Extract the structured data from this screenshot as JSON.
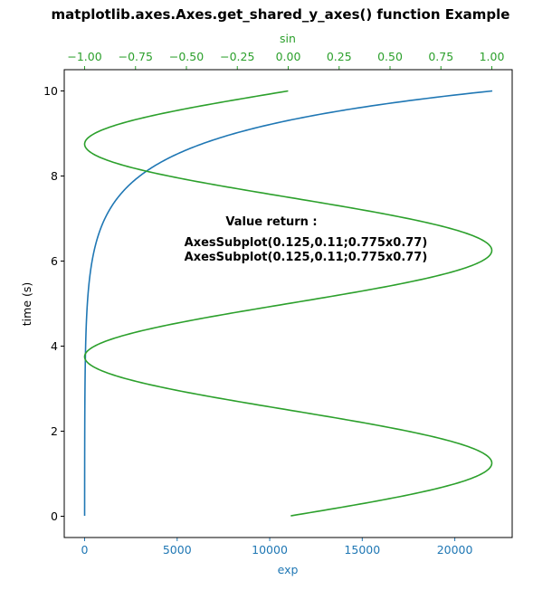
{
  "chart_data": {
    "type": "line",
    "title": "matplotlib.axes.Axes.get_shared_y_axes() function Example",
    "ylabel": "time (s)",
    "ylim": [
      -0.5,
      10.5
    ],
    "yticks": [
      0,
      2,
      4,
      6,
      8,
      10
    ],
    "ytick_labels": [
      "0",
      "2",
      "4",
      "6",
      "8",
      "10"
    ],
    "bottom_axis": {
      "label": "exp",
      "color": "#1f77b4",
      "xlim": [
        -1100,
        23100
      ],
      "ticks": [
        0,
        5000,
        10000,
        15000,
        20000
      ],
      "tick_labels": [
        "0",
        "5000",
        "10000",
        "15000",
        "20000"
      ]
    },
    "top_axis": {
      "label": "sin",
      "color": "#2ca02c",
      "xlim": [
        -1.1,
        1.1
      ],
      "ticks": [
        -1.0,
        -0.75,
        -0.5,
        -0.25,
        0.0,
        0.25,
        0.5,
        0.75,
        1.0
      ],
      "tick_labels": [
        "−1.00",
        "−0.75",
        "−0.50",
        "−0.25",
        "0.00",
        "0.25",
        "0.50",
        "0.75",
        "1.00"
      ]
    },
    "series": [
      {
        "axis": "bottom",
        "color": "#1f77b4",
        "function": "exp",
        "t_start": 0.01,
        "t_end": 10.0,
        "samples": 400
      },
      {
        "axis": "top",
        "color": "#2ca02c",
        "function": "sin",
        "angular_frequency": 1.2566,
        "t_start": 0.01,
        "t_end": 10.0,
        "samples": 400
      }
    ],
    "annotations": {
      "heading": "Value return :",
      "line1": "AxesSubplot(0.125,0.11;0.775x0.77)",
      "line2": "AxesSubplot(0.125,0.11;0.775x0.77)"
    }
  }
}
